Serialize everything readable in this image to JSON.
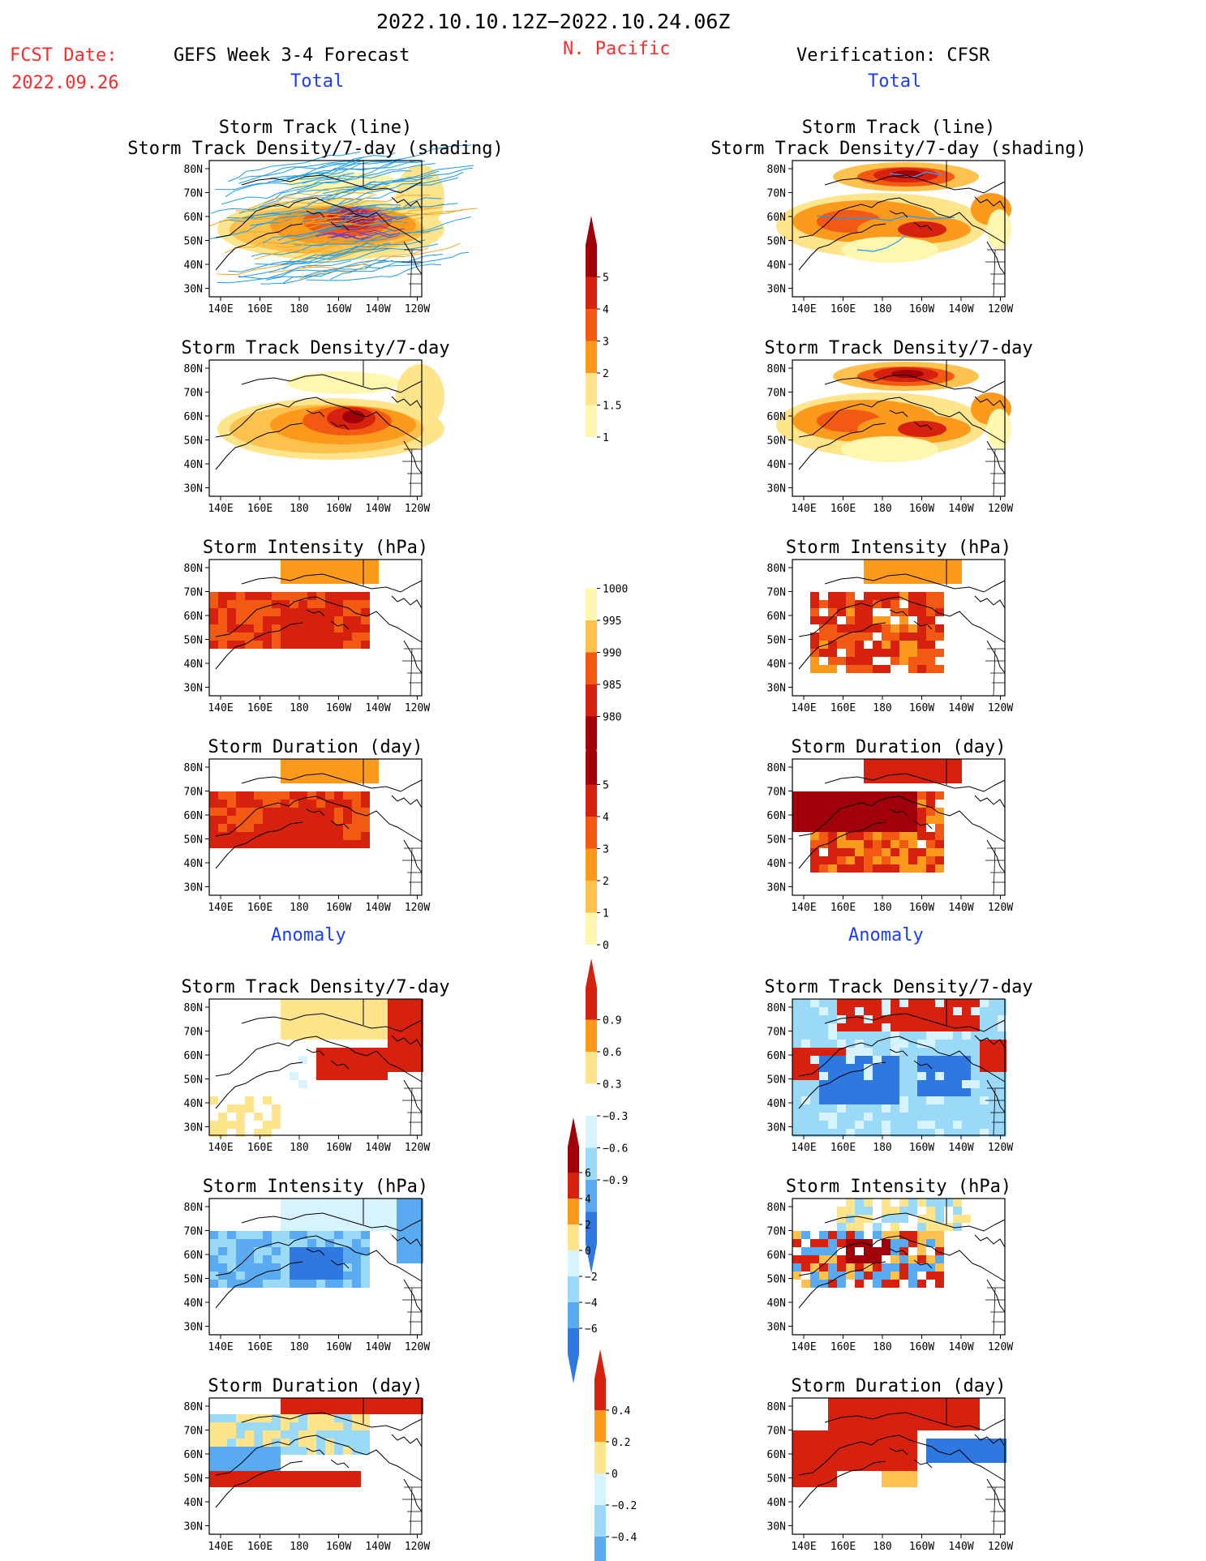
{
  "header": {
    "date_range": "2022.10.10.12Z−2022.10.24.06Z",
    "fcst_date_label": "FCST Date:",
    "fcst_date_value": "2022.09.26",
    "left_title": "GEFS Week 3-4 Forecast",
    "region": "N. Pacific",
    "right_title": "Verification: CFSR"
  },
  "sections": {
    "total": "Total",
    "anomaly": "Anomaly"
  },
  "panel_titles": {
    "track_line": "Storm Track (line)",
    "track_shading": "Storm Track Density/7-day (shading)",
    "density": "Storm Track Density/7-day",
    "intensity": "Storm Intensity (hPa)",
    "duration": "Storm Duration (day)"
  },
  "axes": {
    "lon_ticks": [
      "140E",
      "160E",
      "180",
      "160W",
      "140W",
      "120W"
    ],
    "lat_ticks": [
      "80N",
      "70N",
      "60N",
      "50N",
      "40N",
      "30N"
    ]
  },
  "colorbars": {
    "density_total": [
      "5",
      "4",
      "3",
      "2",
      "1.5",
      "1"
    ],
    "intensity_total": [
      "1000",
      "995",
      "990",
      "985",
      "980"
    ],
    "duration_total": [
      "5",
      "4",
      "3",
      "2",
      "1",
      "0"
    ],
    "density_anom": [
      "0.9",
      "0.6",
      "0.3",
      "−0.3",
      "−0.6",
      "−0.9"
    ],
    "intensity_anom": [
      "6",
      "4",
      "2",
      "0",
      "−2",
      "−4",
      "−6"
    ],
    "duration_anom": [
      "0.4",
      "0.2",
      "0",
      "−0.2",
      "−0.4"
    ]
  },
  "colors": {
    "title_red": "#ff2a2a",
    "title_blue": "#1a3cff",
    "warm": [
      "#fff6b0",
      "#fee48a",
      "#fdc24e",
      "#fb9a1c",
      "#f25a14",
      "#d6210e",
      "#a0000a"
    ],
    "cool": [
      "#d7f3ff",
      "#9ad9f7",
      "#59aaf0",
      "#2f78e0",
      "#1750c8"
    ],
    "track_blue": "#1e9bf0",
    "track_orange": "#f4a61c"
  }
}
